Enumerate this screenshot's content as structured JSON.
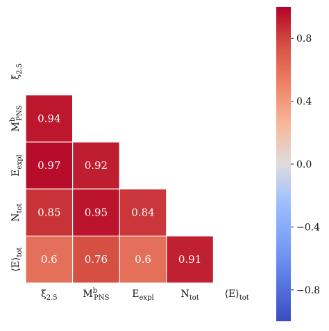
{
  "chart_data": {
    "type": "heatmap",
    "title": "",
    "xlabel": "",
    "ylabel": "",
    "labels": [
      {
        "base": "ξ",
        "sub": "2.5",
        "sup": ""
      },
      {
        "base": "M",
        "sub": "PNS",
        "sup": "b"
      },
      {
        "base": "E",
        "sub": "expl",
        "sup": ""
      },
      {
        "base": "N",
        "sub": "tot",
        "sup": ""
      },
      {
        "base": "⟨E⟩",
        "sub": "tot",
        "sup": ""
      }
    ],
    "mask": "lower-triangle",
    "cells": [
      {
        "row": 1,
        "col": 0,
        "value": 0.94,
        "label": "0.94"
      },
      {
        "row": 2,
        "col": 0,
        "value": 0.97,
        "label": "0.97"
      },
      {
        "row": 2,
        "col": 1,
        "value": 0.92,
        "label": "0.92"
      },
      {
        "row": 3,
        "col": 0,
        "value": 0.85,
        "label": "0.85"
      },
      {
        "row": 3,
        "col": 1,
        "value": 0.95,
        "label": "0.95"
      },
      {
        "row": 3,
        "col": 2,
        "value": 0.84,
        "label": "0.84"
      },
      {
        "row": 4,
        "col": 0,
        "value": 0.6,
        "label": "0.6"
      },
      {
        "row": 4,
        "col": 1,
        "value": 0.76,
        "label": "0.76"
      },
      {
        "row": 4,
        "col": 2,
        "value": 0.6,
        "label": "0.6"
      },
      {
        "row": 4,
        "col": 3,
        "value": 0.91,
        "label": "0.91"
      }
    ],
    "colorbar": {
      "colormap": "coolwarm",
      "range": [
        -1,
        1
      ],
      "ticks": [
        {
          "value": 0.8,
          "label": "0.8"
        },
        {
          "value": 0.4,
          "label": "0.4"
        },
        {
          "value": 0.0,
          "label": "0.0"
        },
        {
          "value": -0.4,
          "label": "−0.4"
        },
        {
          "value": -0.8,
          "label": "−0.8"
        }
      ]
    },
    "grid": false
  }
}
